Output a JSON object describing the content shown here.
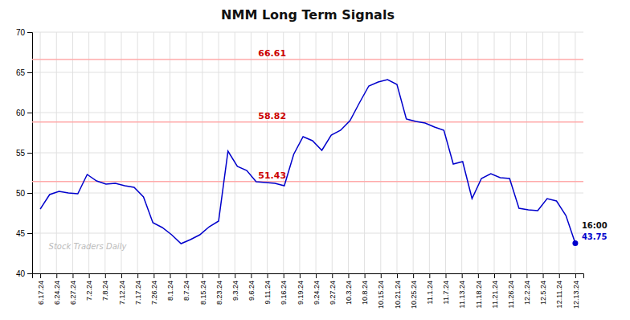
{
  "chart_data": {
    "type": "line",
    "title": "NMM Long Term Signals",
    "x": [
      0,
      0.578947,
      1.157895,
      1.736842,
      2.315789,
      2.894737,
      3.473684,
      4.052632,
      4.631579,
      5.210526,
      5.789474,
      6.368421,
      6.947368,
      7.526316,
      8.105263,
      8.684211,
      9.263158,
      9.842105,
      10.421053,
      11,
      11.578947,
      12.157895,
      12.736842,
      13.315789,
      13.894737,
      14.473684,
      15.052632,
      15.631579,
      16.210526,
      16.789474,
      17.368421,
      17.947368,
      18.526316,
      19.105263,
      19.684211,
      20.263158,
      20.842105,
      21.421053,
      22,
      22.578947,
      23.157895,
      23.736842,
      24.315789,
      24.894737,
      25.473684,
      26.052632,
      26.631579,
      27.210526,
      27.789474,
      28.368421,
      28.947368,
      29.526316,
      30.105263,
      30.684211,
      31.263158,
      31.842105,
      32.421053,
      33
    ],
    "series": [
      {
        "color": "#0000cc",
        "values": [
          48.0,
          49.8,
          50.2,
          50.0,
          49.9,
          52.3,
          51.5,
          51.1,
          51.2,
          50.9,
          50.7,
          49.5,
          46.3,
          45.7,
          44.8,
          43.7,
          44.2,
          44.8,
          45.8,
          46.5,
          55.2,
          53.3,
          52.8,
          51.4,
          51.3,
          51.2,
          50.9,
          54.8,
          57.0,
          56.5,
          55.3,
          57.2,
          57.8,
          59.0,
          61.2,
          63.3,
          63.8,
          64.1,
          63.5,
          59.2,
          58.9,
          58.7,
          58.2,
          57.8,
          53.6,
          53.9,
          49.3,
          51.8,
          52.4,
          51.9,
          51.8,
          48.1,
          47.9,
          47.8,
          49.3,
          49.0,
          47.2,
          43.75
        ]
      }
    ],
    "xlim": [
      -0.5,
      33.5
    ],
    "xticks": [
      {
        "value": 0,
        "label": "6.17.24"
      },
      {
        "value": 1,
        "label": "6.24.24"
      },
      {
        "value": 2,
        "label": "6.27.24"
      },
      {
        "value": 3,
        "label": "7.2.24"
      },
      {
        "value": 4,
        "label": "7.8.24"
      },
      {
        "value": 5,
        "label": "7.12.24"
      },
      {
        "value": 6,
        "label": "7.17.24"
      },
      {
        "value": 7,
        "label": "7.26.24"
      },
      {
        "value": 8,
        "label": "8.1.24"
      },
      {
        "value": 9,
        "label": "8.7.24"
      },
      {
        "value": 10,
        "label": "8.15.24"
      },
      {
        "value": 11,
        "label": "8.23.24"
      },
      {
        "value": 12,
        "label": "9.3.24"
      },
      {
        "value": 13,
        "label": "9.6.24"
      },
      {
        "value": 14,
        "label": "9.11.24"
      },
      {
        "value": 15,
        "label": "9.16.24"
      },
      {
        "value": 16,
        "label": "9.19.24"
      },
      {
        "value": 17,
        "label": "9.24.24"
      },
      {
        "value": 18,
        "label": "9.27.24"
      },
      {
        "value": 19,
        "label": "10.3.24"
      },
      {
        "value": 20,
        "label": "10.8.24"
      },
      {
        "value": 21,
        "label": "10.15.24"
      },
      {
        "value": 22,
        "label": "10.21.24"
      },
      {
        "value": 23,
        "label": "10.25.24"
      },
      {
        "value": 24,
        "label": "11.1.24"
      },
      {
        "value": 25,
        "label": "11.7.24"
      },
      {
        "value": 26,
        "label": "11.13.24"
      },
      {
        "value": 27,
        "label": "11.18.24"
      },
      {
        "value": 28,
        "label": "11.21.24"
      },
      {
        "value": 29,
        "label": "11.26.24"
      },
      {
        "value": 30,
        "label": "12.2.24"
      },
      {
        "value": 31,
        "label": "12.5.24"
      },
      {
        "value": 32,
        "label": "12.11.24"
      },
      {
        "value": 33,
        "label": "12.13.24"
      }
    ],
    "ylim": [
      40,
      70
    ],
    "yticks": [
      40,
      45,
      50,
      55,
      60,
      65,
      70
    ],
    "grid": true,
    "reference_lines": [
      {
        "value": 66.61,
        "label": "66.61",
        "color": "#ffaaaa"
      },
      {
        "value": 58.82,
        "label": "58.82",
        "color": "#ffaaaa"
      },
      {
        "value": 51.43,
        "label": "51.43",
        "color": "#ffaaaa"
      }
    ],
    "annotations": [
      "16:00",
      "43.75"
    ],
    "watermark": "Stock Traders Daily"
  }
}
